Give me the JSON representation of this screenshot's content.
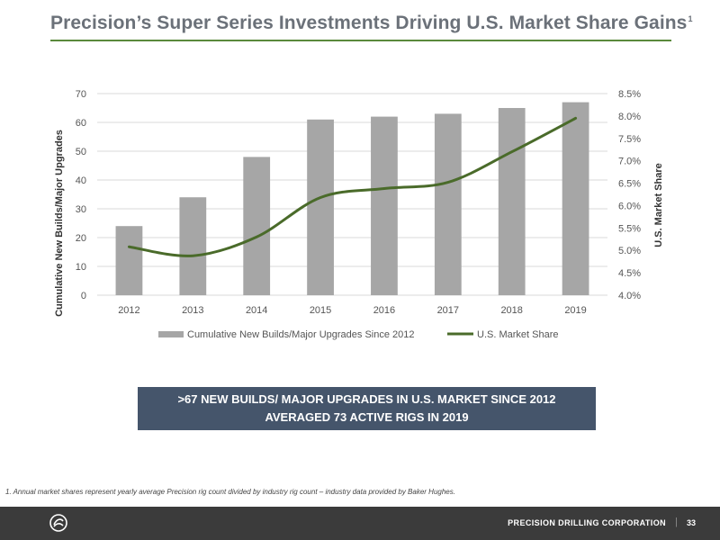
{
  "slide": {
    "title": "Precision’s Super Series Investments Driving U.S. Market Share Gains",
    "title_superscript": "1",
    "banner_lines": [
      ">67 NEW BUILDS/ MAJOR UPGRADES IN U.S. MARKET SINCE 2012",
      "AVERAGED 73 ACTIVE RIGS IN 2019"
    ],
    "footnote": "1. Annual market shares represent yearly average Precision rig count divided by industry rig count – industry data provided by Baker Hughes.",
    "footer": {
      "company": "PRECISION DRILLING CORPORATION",
      "separator": "|",
      "page_number": "33"
    },
    "colors": {
      "accent_green": "#5a8a3c",
      "banner": "#45556b",
      "footer": "#3b3b3b"
    }
  },
  "chart_data": {
    "type": "bar",
    "categories": [
      "2012",
      "2013",
      "2014",
      "2015",
      "2016",
      "2017",
      "2018",
      "2019"
    ],
    "series": [
      {
        "name": "Cumulative New Builds/Major Upgrades Since 2012",
        "type": "bar",
        "axis": "left",
        "color": "#a6a6a6",
        "values": [
          24,
          34,
          48,
          61,
          62,
          63,
          65,
          67
        ]
      },
      {
        "name": "U.S. Market Share",
        "type": "line",
        "axis": "right",
        "color": "#4a6b2a",
        "values": [
          0.0508,
          0.0488,
          0.053,
          0.0618,
          0.0638,
          0.0652,
          0.072,
          0.0795
        ]
      }
    ],
    "ylabel": "Cumulative New Builds/Major Upgrades",
    "y2label": "U.S. Market Share",
    "ylim": [
      0,
      70
    ],
    "y_ticks": [
      "0",
      "10",
      "20",
      "30",
      "40",
      "50",
      "60",
      "70"
    ],
    "y2lim": [
      0.04,
      0.085
    ],
    "y2_ticks": [
      "4.0%",
      "4.5%",
      "5.0%",
      "5.5%",
      "6.0%",
      "6.5%",
      "7.0%",
      "7.5%",
      "8.0%",
      "8.5%"
    ],
    "grid": true,
    "legend_position": "bottom"
  }
}
